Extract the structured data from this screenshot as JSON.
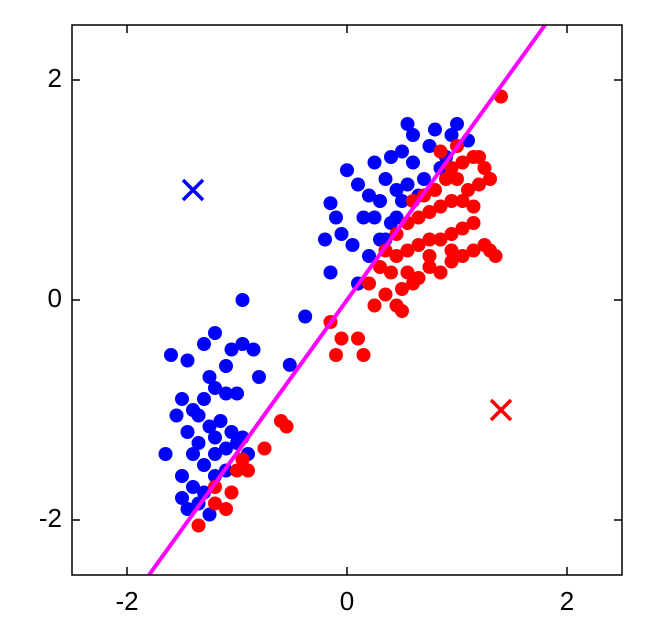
{
  "chart_data": {
    "type": "scatter",
    "xlim": [
      -2.5,
      2.5
    ],
    "ylim": [
      -2.5,
      2.5
    ],
    "xticks": [
      -2,
      0,
      2
    ],
    "yticks": [
      -2,
      0,
      2
    ],
    "series": [
      {
        "color": "#0000ff",
        "marker": "circle",
        "x": [
          -1.6,
          -1.45,
          -1.3,
          -1.2,
          -1.05,
          -0.95,
          -0.85,
          -0.95,
          -1.1,
          -1.5,
          -1.4,
          -1.3,
          -1.2,
          -1.1,
          -1.0,
          -1.45,
          -1.35,
          -1.25,
          -1.15,
          -1.05,
          -1.4,
          -1.3,
          -1.2,
          -1.1,
          -1.0,
          -0.95,
          -1.65,
          -1.5,
          -1.4,
          -1.3,
          -1.2,
          -1.1,
          -1.5,
          -1.45,
          -1.35,
          -1.25,
          -0.9,
          -0.52,
          -0.8,
          -0.38,
          -1.55,
          -1.35,
          -1.25,
          -1.2,
          -0.15,
          0.0,
          0.1,
          0.25,
          0.35,
          0.4,
          0.5,
          0.55,
          0.6,
          0.75,
          0.8,
          0.95,
          1.0,
          1.1,
          0.45,
          0.55,
          0.3,
          0.2,
          0.25,
          0.15,
          0.35,
          0.3,
          0.45,
          0.5,
          0.65,
          0.7,
          0.85,
          0.9,
          -0.05,
          0.05,
          0.2,
          -0.1,
          -0.15,
          0.1,
          -0.2,
          0.6,
          0.4
        ],
        "values": [
          -0.5,
          -0.55,
          -0.4,
          -0.3,
          -0.45,
          -0.4,
          -0.45,
          0.0,
          -0.6,
          -0.9,
          -1.0,
          -0.9,
          -0.8,
          -0.85,
          -0.85,
          -1.2,
          -1.3,
          -1.15,
          -1.1,
          -1.2,
          -1.4,
          -1.5,
          -1.4,
          -1.35,
          -1.3,
          -1.25,
          -1.4,
          -1.6,
          -1.7,
          -1.75,
          -1.6,
          -1.55,
          -1.8,
          -1.9,
          -1.85,
          -1.95,
          -1.4,
          -0.59,
          -0.7,
          -0.15,
          -1.05,
          -1.05,
          -0.7,
          -1.25,
          0.88,
          1.18,
          1.05,
          1.25,
          1.1,
          1.3,
          1.35,
          1.6,
          1.5,
          1.4,
          1.55,
          1.5,
          1.6,
          1.45,
          1.0,
          1.05,
          0.9,
          0.95,
          0.75,
          0.75,
          0.55,
          0.55,
          0.75,
          0.9,
          0.95,
          1.1,
          1.2,
          1.3,
          0.6,
          0.5,
          0.4,
          0.75,
          0.25,
          0.15,
          0.55,
          1.25,
          0.7
        ]
      },
      {
        "color": "#ff0000",
        "marker": "circle",
        "x": [
          -1.35,
          -1.2,
          -1.1,
          -1.05,
          -1.2,
          -1.0,
          -0.9,
          -0.95,
          -0.75,
          -0.55,
          -0.6,
          -0.15,
          -0.05,
          0.1,
          -0.1,
          0.15,
          0.25,
          0.35,
          0.45,
          0.5,
          0.5,
          0.6,
          0.65,
          0.75,
          0.85,
          0.95,
          1.05,
          1.15,
          1.3,
          1.35,
          0.3,
          0.35,
          0.45,
          0.55,
          0.65,
          0.75,
          0.85,
          0.95,
          1.05,
          1.15,
          0.45,
          0.55,
          0.65,
          0.75,
          0.85,
          0.95,
          1.05,
          1.15,
          0.6,
          0.7,
          0.8,
          0.9,
          1.0,
          1.1,
          0.95,
          1.05,
          1.15,
          1.25,
          1.2,
          1.3,
          1.4,
          1.2,
          1.0,
          0.85,
          0.4,
          0.2,
          0.55,
          0.95,
          1.25,
          0.75
        ],
        "values": [
          -2.05,
          -1.85,
          -1.9,
          -1.75,
          -1.7,
          -1.55,
          -1.55,
          -1.45,
          -1.35,
          -1.15,
          -1.1,
          -0.2,
          -0.35,
          -0.35,
          -0.5,
          -0.5,
          -0.05,
          0.05,
          -0.05,
          -0.1,
          0.1,
          0.15,
          0.2,
          0.3,
          0.25,
          0.35,
          0.4,
          0.45,
          0.45,
          0.4,
          0.3,
          0.45,
          0.4,
          0.45,
          0.5,
          0.55,
          0.55,
          0.6,
          0.65,
          0.7,
          0.6,
          0.7,
          0.75,
          0.8,
          0.85,
          0.9,
          0.9,
          0.85,
          0.9,
          0.95,
          1.0,
          1.1,
          1.1,
          1.0,
          1.2,
          1.25,
          1.3,
          1.2,
          1.05,
          1.1,
          1.85,
          1.3,
          1.4,
          1.35,
          0.25,
          0.15,
          0.25,
          0.45,
          0.5,
          0.4
        ]
      },
      {
        "color": "#0000ff",
        "marker": "cross",
        "x": [
          -1.4
        ],
        "values": [
          1.0
        ]
      },
      {
        "color": "#ff0000",
        "marker": "cross",
        "x": [
          1.4
        ],
        "values": [
          -1.0
        ]
      },
      {
        "color": "#ff00ff",
        "marker": "line",
        "x": [
          -1.8,
          1.8
        ],
        "values": [
          -2.5,
          2.5
        ]
      }
    ]
  }
}
